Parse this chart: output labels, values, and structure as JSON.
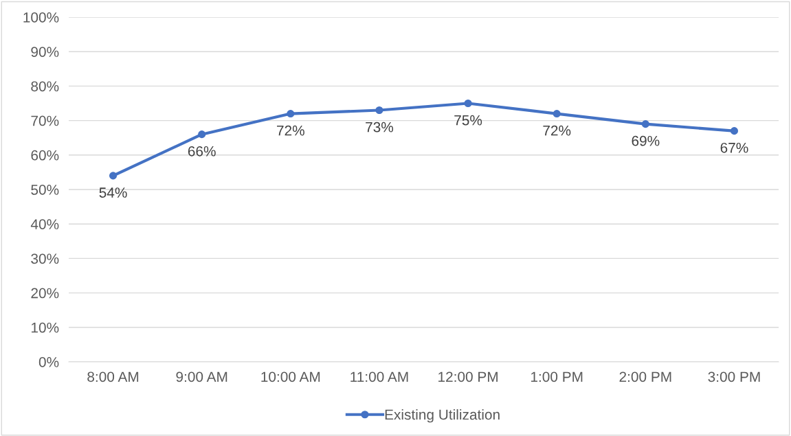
{
  "chart_data": {
    "type": "line",
    "categories": [
      "8:00 AM",
      "9:00 AM",
      "10:00 AM",
      "11:00 AM",
      "12:00 PM",
      "1:00 PM",
      "2:00 PM",
      "3:00 PM"
    ],
    "series": [
      {
        "name": "Existing Utilization",
        "color": "#4472c4",
        "values": [
          54,
          66,
          72,
          73,
          75,
          72,
          69,
          67
        ],
        "value_labels": [
          "54%",
          "66%",
          "72%",
          "73%",
          "75%",
          "72%",
          "69%",
          "67%"
        ]
      }
    ],
    "ylim": [
      0,
      100
    ],
    "yticks": [
      {
        "value": 0,
        "label": "0%"
      },
      {
        "value": 10,
        "label": "10%"
      },
      {
        "value": 20,
        "label": "20%"
      },
      {
        "value": 30,
        "label": "30%"
      },
      {
        "value": 40,
        "label": "40%"
      },
      {
        "value": 50,
        "label": "50%"
      },
      {
        "value": 60,
        "label": "60%"
      },
      {
        "value": 70,
        "label": "70%"
      },
      {
        "value": 80,
        "label": "80%"
      },
      {
        "value": 90,
        "label": "90%"
      },
      {
        "value": 100,
        "label": "100%"
      }
    ],
    "grid": "y",
    "legend": "bottom",
    "marker": "circle",
    "line_style": "solid"
  }
}
